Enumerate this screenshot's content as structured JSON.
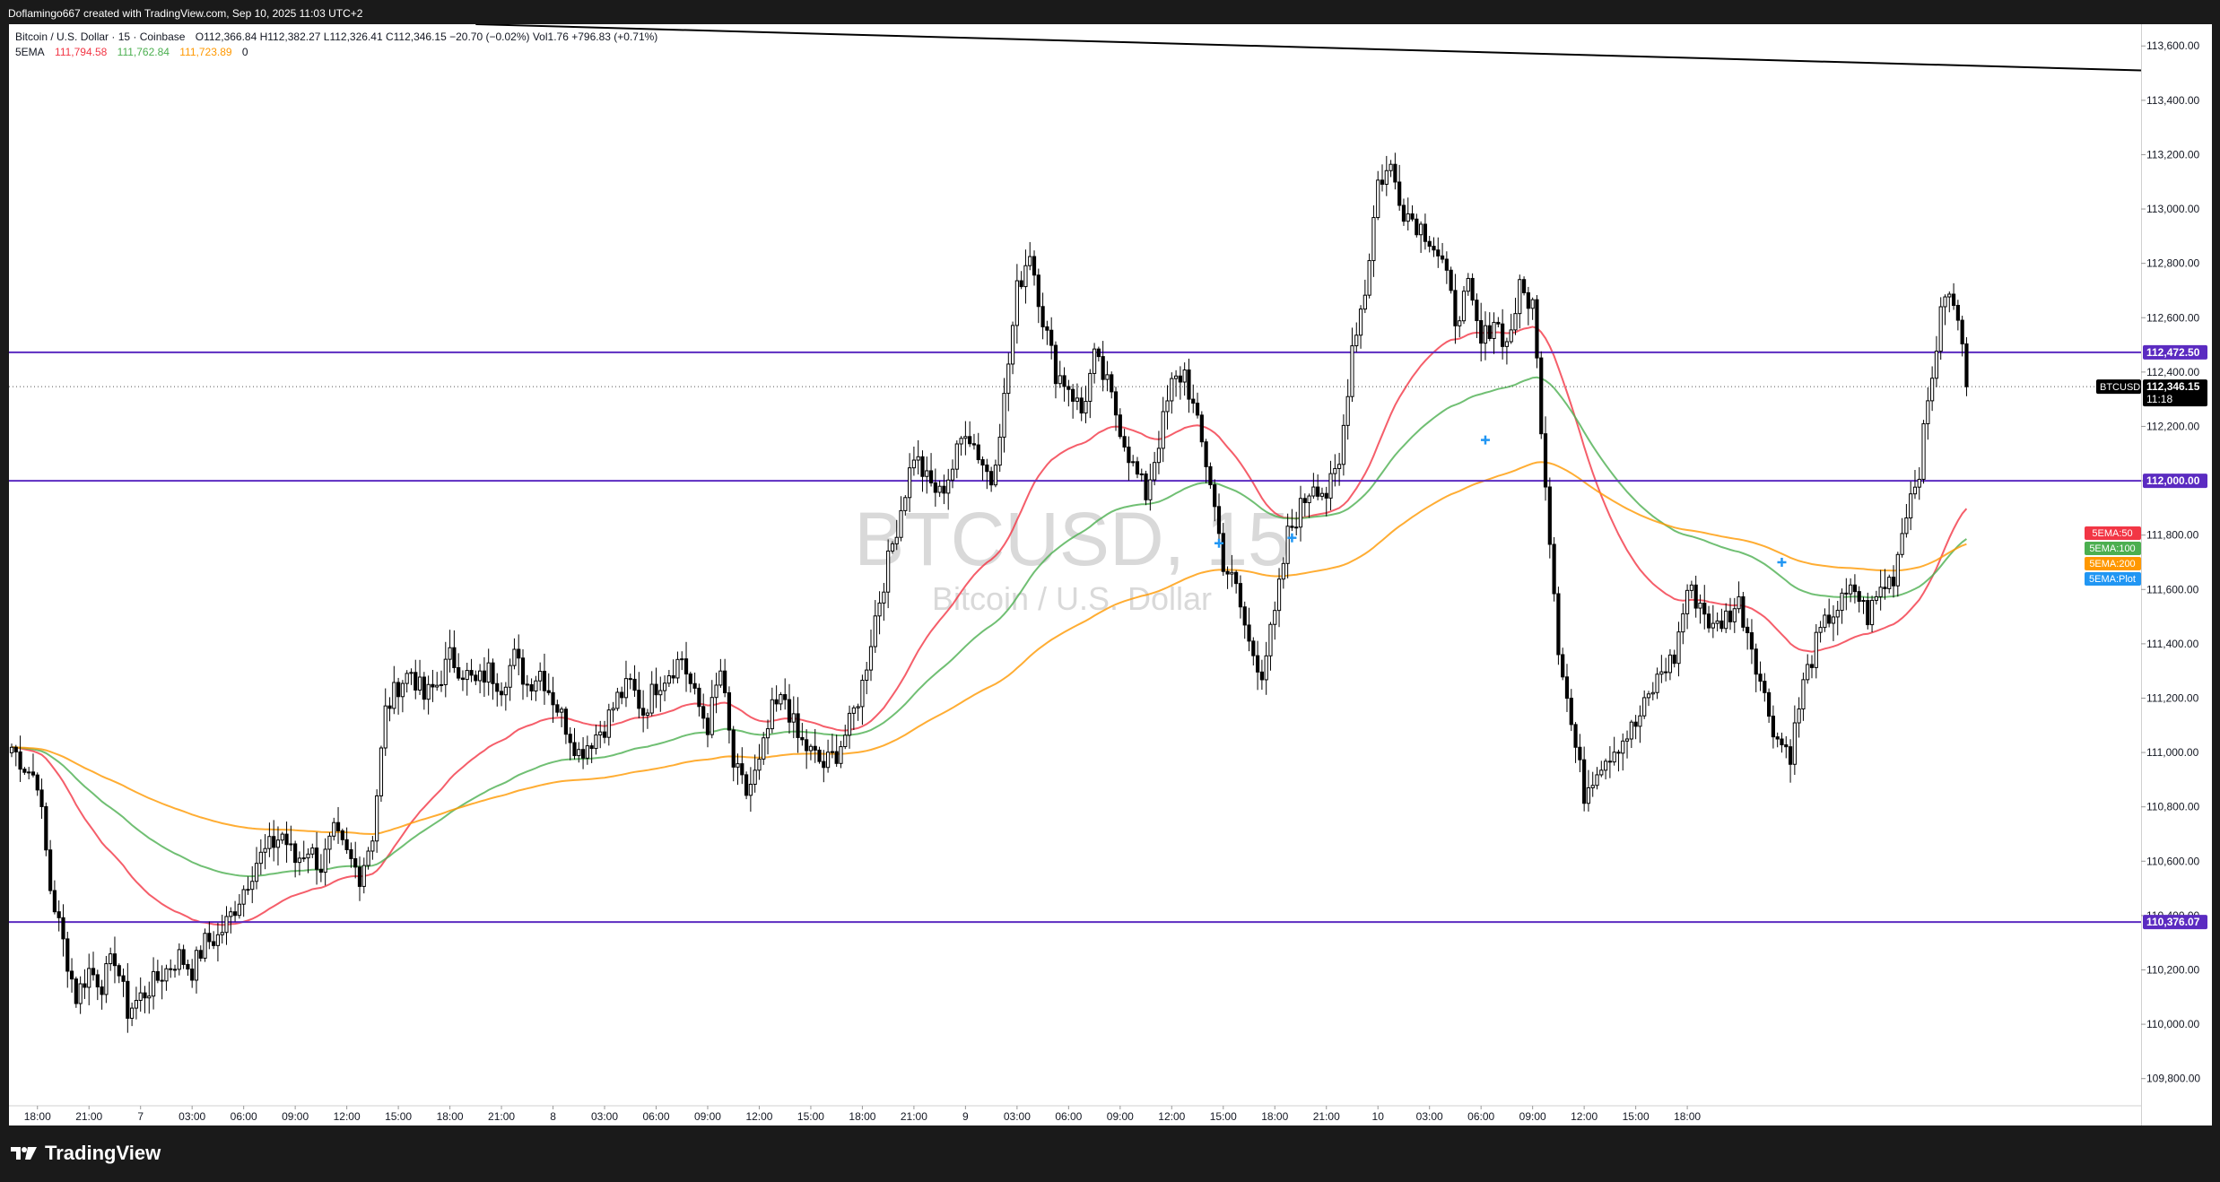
{
  "header": {
    "attribution": "Doflamingo667 created with TradingView.com, Sep 10, 2025 11:03 UTC+2"
  },
  "legend": {
    "symbol": "Bitcoin / U.S. Dollar · 15 · Coinbase",
    "ohlc": "O112,366.84  H112,382.27  L112,326.41  C112,346.15  −20.70 (−0.02%)  Vol1.76  +796.83 (+0.71%)",
    "ema_label": "5EMA",
    "ema_values": [
      "111,794.58",
      "111,762.84",
      "111,723.89",
      "0"
    ]
  },
  "watermark": {
    "title": "BTCUSD, 15",
    "subtitle": "Bitcoin / U.S. Dollar"
  },
  "footer": {
    "logo_text": "TradingView"
  },
  "colors": {
    "ema50": "#f23645",
    "ema100": "#4caf50",
    "ema200": "#ff9800",
    "plot": "#2196f3",
    "level": "#5b2bc1",
    "candle": "#000000"
  },
  "chart_data": {
    "type": "candlestick",
    "symbol": "BTCUSD",
    "interval": "15",
    "ylim": [
      109700,
      113680
    ],
    "y_ticks": [
      "113,600.00",
      "113,400.00",
      "113,200.00",
      "113,000.00",
      "112,800.00",
      "112,600.00",
      "112,400.00",
      "112,200.00",
      "112,000.00",
      "111,800.00",
      "111,600.00",
      "111,400.00",
      "111,200.00",
      "111,000.00",
      "110,800.00",
      "110,600.00",
      "110,400.00",
      "110,200.00",
      "110,000.00",
      "109,800.00"
    ],
    "y_tick_values": [
      113600,
      113400,
      113200,
      113000,
      112800,
      112600,
      112400,
      112200,
      112000,
      111800,
      111600,
      111400,
      111200,
      111000,
      110800,
      110600,
      110400,
      110200,
      110000,
      109800
    ],
    "x_ticks": [
      "18:00",
      "21:00",
      "7",
      "03:00",
      "06:00",
      "09:00",
      "12:00",
      "15:00",
      "18:00",
      "21:00",
      "8",
      "03:00",
      "06:00",
      "09:00",
      "12:00",
      "15:00",
      "18:00",
      "21:00",
      "9",
      "03:00",
      "06:00",
      "09:00",
      "12:00",
      "15:00",
      "18:00",
      "21:00",
      "10",
      "03:00",
      "06:00",
      "09:00",
      "12:00",
      "15:00",
      "18:00"
    ],
    "horizontal_levels": [
      {
        "value": 112472.5,
        "label": "112,472.50"
      },
      {
        "value": 112000.0,
        "label": "112,000.00"
      },
      {
        "value": 110376.07,
        "label": "110,376.07"
      }
    ],
    "current_price": {
      "value": 112346.15,
      "label": "112,346.15",
      "countdown": "11:18",
      "ticker": "BTCUSD"
    },
    "trendline": {
      "x_start_bar": 108,
      "y_start": 113680,
      "x_end_bar": 160,
      "y_end": 113510
    },
    "candles": {
      "start_time": "Sep 6 16:30",
      "bar_minutes": 15,
      "waypoints": [
        [
          0,
          111020
        ],
        [
          3,
          110950
        ],
        [
          6,
          110900
        ],
        [
          9,
          110500
        ],
        [
          12,
          110300
        ],
        [
          15,
          110100
        ],
        [
          18,
          110200
        ],
        [
          21,
          110150
        ],
        [
          24,
          110250
        ],
        [
          27,
          110050
        ],
        [
          30,
          110100
        ],
        [
          33,
          110150
        ],
        [
          36,
          110200
        ],
        [
          39,
          110250
        ],
        [
          42,
          110200
        ],
        [
          45,
          110300
        ],
        [
          48,
          110320
        ],
        [
          51,
          110400
        ],
        [
          54,
          110500
        ],
        [
          57,
          110600
        ],
        [
          60,
          110650
        ],
        [
          63,
          110700
        ],
        [
          66,
          110600
        ],
        [
          69,
          110650
        ],
        [
          72,
          110580
        ],
        [
          75,
          110700
        ],
        [
          78,
          110620
        ],
        [
          81,
          110550
        ],
        [
          84,
          110700
        ],
        [
          87,
          111150
        ],
        [
          90,
          111250
        ],
        [
          93,
          111300
        ],
        [
          96,
          111200
        ],
        [
          99,
          111250
        ],
        [
          102,
          111350
        ],
        [
          105,
          111300
        ],
        [
          108,
          111250
        ],
        [
          111,
          111300
        ],
        [
          114,
          111250
        ],
        [
          117,
          111350
        ],
        [
          120,
          111250
        ],
        [
          123,
          111300
        ],
        [
          126,
          111200
        ],
        [
          129,
          111100
        ],
        [
          132,
          111000
        ],
        [
          135,
          111050
        ],
        [
          138,
          111100
        ],
        [
          141,
          111200
        ],
        [
          144,
          111250
        ],
        [
          147,
          111150
        ],
        [
          150,
          111250
        ],
        [
          153,
          111300
        ],
        [
          156,
          111350
        ],
        [
          159,
          111200
        ],
        [
          162,
          111100
        ],
        [
          165,
          111300
        ],
        [
          168,
          110950
        ],
        [
          171,
          110850
        ],
        [
          174,
          110950
        ],
        [
          177,
          111150
        ],
        [
          180,
          111200
        ],
        [
          183,
          111050
        ],
        [
          186,
          111000
        ],
        [
          189,
          110950
        ],
        [
          192,
          111000
        ],
        [
          195,
          111100
        ],
        [
          198,
          111250
        ],
        [
          201,
          111500
        ],
        [
          204,
          111700
        ],
        [
          207,
          111900
        ],
        [
          210,
          112100
        ],
        [
          213,
          112000
        ],
        [
          216,
          111950
        ],
        [
          219,
          112050
        ],
        [
          222,
          112200
        ],
        [
          225,
          112100
        ],
        [
          228,
          112000
        ],
        [
          231,
          112300
        ],
        [
          234,
          112700
        ],
        [
          237,
          112850
        ],
        [
          240,
          112600
        ],
        [
          243,
          112400
        ],
        [
          246,
          112350
        ],
        [
          249,
          112250
        ],
        [
          252,
          112450
        ],
        [
          255,
          112350
        ],
        [
          258,
          112200
        ],
        [
          261,
          112050
        ],
        [
          264,
          111950
        ],
        [
          267,
          112150
        ],
        [
          270,
          112350
        ],
        [
          273,
          112400
        ],
        [
          276,
          112200
        ],
        [
          279,
          112000
        ],
        [
          282,
          111700
        ],
        [
          285,
          111600
        ],
        [
          288,
          111400
        ],
        [
          291,
          111300
        ],
        [
          294,
          111500
        ],
        [
          297,
          111800
        ],
        [
          300,
          111900
        ],
        [
          303,
          112000
        ],
        [
          306,
          111950
        ],
        [
          309,
          112050
        ],
        [
          312,
          112500
        ],
        [
          315,
          112700
        ],
        [
          318,
          113100
        ],
        [
          321,
          113150
        ],
        [
          324,
          113000
        ],
        [
          327,
          112950
        ],
        [
          330,
          112900
        ],
        [
          333,
          112800
        ],
        [
          336,
          112600
        ],
        [
          339,
          112700
        ],
        [
          342,
          112500
        ],
        [
          345,
          112600
        ],
        [
          348,
          112500
        ],
        [
          351,
          112700
        ],
        [
          354,
          112650
        ],
        [
          357,
          112000
        ],
        [
          360,
          111400
        ],
        [
          363,
          111100
        ],
        [
          366,
          110850
        ],
        [
          369,
          110950
        ],
        [
          372,
          111000
        ],
        [
          375,
          111050
        ],
        [
          378,
          111100
        ],
        [
          381,
          111200
        ],
        [
          384,
          111300
        ],
        [
          387,
          111350
        ],
        [
          390,
          111600
        ],
        [
          393,
          111550
        ],
        [
          396,
          111450
        ],
        [
          399,
          111500
        ],
        [
          402,
          111550
        ],
        [
          405,
          111400
        ],
        [
          408,
          111200
        ],
        [
          411,
          111050
        ],
        [
          414,
          111000
        ],
        [
          417,
          111250
        ],
        [
          420,
          111400
        ],
        [
          423,
          111500
        ],
        [
          426,
          111550
        ],
        [
          429,
          111600
        ],
        [
          432,
          111500
        ],
        [
          435,
          111600
        ],
        [
          438,
          111650
        ],
        [
          441,
          111900
        ],
        [
          444,
          112050
        ],
        [
          447,
          112400
        ],
        [
          450,
          112700
        ],
        [
          453,
          112600
        ],
        [
          455,
          112346
        ]
      ]
    },
    "series": [
      {
        "name": "5EMA:50",
        "period": 50,
        "color": "#f23645"
      },
      {
        "name": "5EMA:100",
        "period": 100,
        "color": "#4caf50"
      },
      {
        "name": "5EMA:200",
        "period": 200,
        "color": "#ff9800"
      },
      {
        "name": "5EMA:Plot",
        "color": "#2196f3"
      }
    ],
    "plot_markers": [
      [
        281,
        111770
      ],
      [
        298,
        111790
      ],
      [
        343,
        112150
      ],
      [
        412,
        111700
      ]
    ]
  }
}
